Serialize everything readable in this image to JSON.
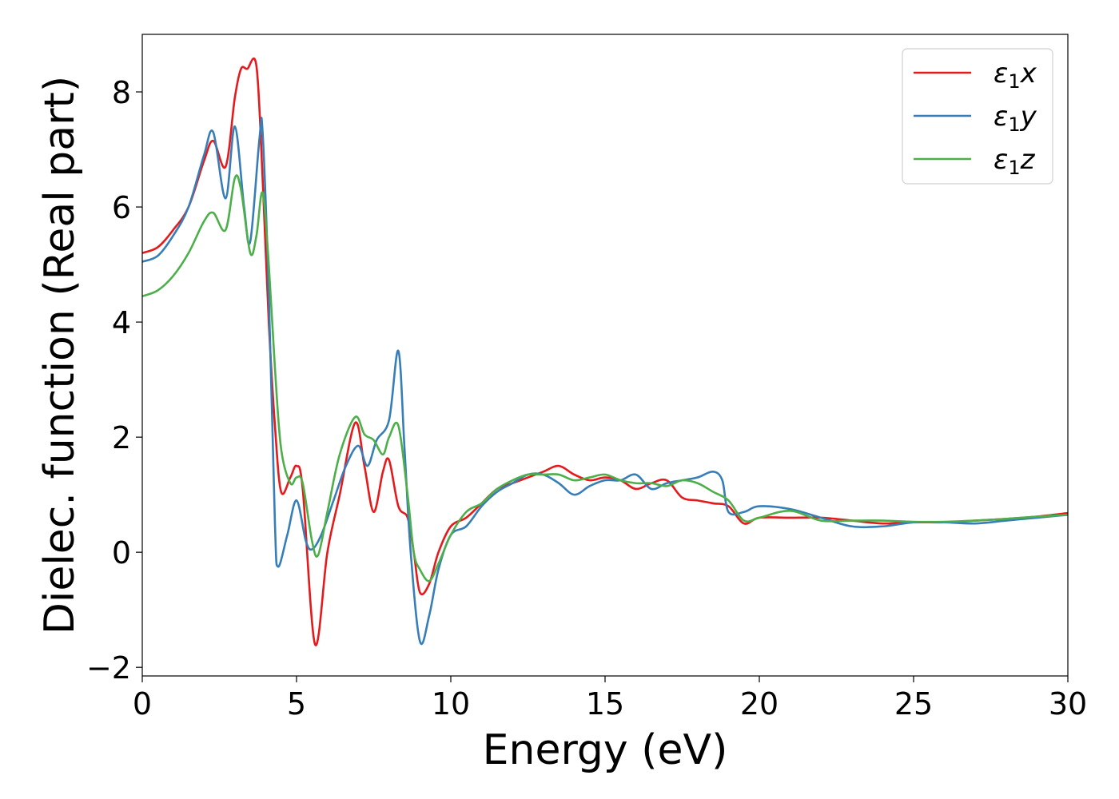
{
  "chart_data": {
    "type": "line",
    "title": "",
    "xlabel": "Energy (eV)",
    "ylabel": "Dielec. function (Real part)",
    "xlim": [
      0,
      30
    ],
    "ylim": [
      -2.15,
      9.0
    ],
    "xticks": [
      0,
      5,
      10,
      15,
      20,
      25,
      30
    ],
    "xtick_labels": [
      "0",
      "5",
      "10",
      "15",
      "20",
      "25",
      "30"
    ],
    "yticks": [
      -2,
      0,
      2,
      4,
      6,
      8
    ],
    "ytick_labels": [
      "−2",
      "0",
      "2",
      "4",
      "6",
      "8"
    ],
    "grid": false,
    "legend": "top-right",
    "series": [
      {
        "name": "ε₁x",
        "legend_base": "ε",
        "legend_sub": "1",
        "legend_var": "x",
        "color": "#e41a1c",
        "x": [
          0,
          0.5,
          1.0,
          1.5,
          2.0,
          2.3,
          2.7,
          3.0,
          3.2,
          3.4,
          3.7,
          3.9,
          4.1,
          4.3,
          4.5,
          4.8,
          5.0,
          5.2,
          5.6,
          6.0,
          6.4,
          6.9,
          7.2,
          7.5,
          7.8,
          8.0,
          8.3,
          8.6,
          8.8,
          9.0,
          9.3,
          9.6,
          10.0,
          10.5,
          11.0,
          11.5,
          12.0,
          12.5,
          13.0,
          13.5,
          14.0,
          14.5,
          15.0,
          15.5,
          16.0,
          16.5,
          17.0,
          17.5,
          18.0,
          18.5,
          19.0,
          19.5,
          20.0,
          21.0,
          22.0,
          23.0,
          24.0,
          25.0,
          26.0,
          27.0,
          28.0,
          29.0,
          30.0
        ],
        "y": [
          5.2,
          5.3,
          5.6,
          6.0,
          6.8,
          7.15,
          6.7,
          7.9,
          8.4,
          8.4,
          8.45,
          6.5,
          4.0,
          2.2,
          1.05,
          1.3,
          1.5,
          1.1,
          -1.6,
          0.0,
          1.0,
          2.25,
          1.5,
          0.7,
          1.4,
          1.6,
          0.8,
          0.6,
          0.0,
          -0.7,
          -0.55,
          0.0,
          0.45,
          0.6,
          0.85,
          1.1,
          1.2,
          1.3,
          1.4,
          1.5,
          1.35,
          1.25,
          1.3,
          1.25,
          1.1,
          1.2,
          1.25,
          0.95,
          0.9,
          0.85,
          0.8,
          0.5,
          0.6,
          0.6,
          0.6,
          0.55,
          0.5,
          0.52,
          0.52,
          0.55,
          0.58,
          0.62,
          0.68
        ]
      },
      {
        "name": "ε₁y",
        "legend_base": "ε",
        "legend_sub": "1",
        "legend_var": "y",
        "color": "#377eb8",
        "x": [
          0,
          0.5,
          1.0,
          1.5,
          2.0,
          2.3,
          2.7,
          3.0,
          3.3,
          3.5,
          3.8,
          3.9,
          4.1,
          4.3,
          4.4,
          4.7,
          5.0,
          5.3,
          5.5,
          5.8,
          6.2,
          6.6,
          7.0,
          7.3,
          7.6,
          8.0,
          8.3,
          8.5,
          8.7,
          9.0,
          9.3,
          9.6,
          10.0,
          10.5,
          11.0,
          11.5,
          12.0,
          12.5,
          13.0,
          13.5,
          14.0,
          14.5,
          15.0,
          15.5,
          16.0,
          16.5,
          17.0,
          17.5,
          18.0,
          18.5,
          18.8,
          19.0,
          19.5,
          20.0,
          21.0,
          22.0,
          23.0,
          24.0,
          25.0,
          26.0,
          27.0,
          28.0,
          29.0,
          30.0
        ],
        "y": [
          5.05,
          5.15,
          5.5,
          6.0,
          6.9,
          7.3,
          6.15,
          7.4,
          6.0,
          5.4,
          7.2,
          7.3,
          4.5,
          0.5,
          -0.25,
          0.3,
          0.9,
          0.2,
          0.05,
          0.3,
          0.9,
          1.5,
          1.85,
          1.5,
          1.95,
          2.3,
          3.5,
          1.8,
          0.0,
          -1.55,
          -1.1,
          -0.3,
          0.3,
          0.45,
          0.8,
          1.05,
          1.2,
          1.35,
          1.35,
          1.2,
          1.0,
          1.15,
          1.25,
          1.25,
          1.35,
          1.1,
          1.2,
          1.25,
          1.3,
          1.4,
          1.25,
          0.7,
          0.7,
          0.8,
          0.75,
          0.6,
          0.45,
          0.45,
          0.52,
          0.52,
          0.5,
          0.55,
          0.6,
          0.65
        ]
      },
      {
        "name": "ε₁z",
        "legend_base": "ε",
        "legend_sub": "1",
        "legend_var": "z",
        "color": "#4daf4a",
        "x": [
          0,
          0.5,
          1.0,
          1.5,
          2.0,
          2.3,
          2.7,
          3.0,
          3.2,
          3.5,
          3.7,
          3.9,
          4.1,
          4.3,
          4.5,
          4.8,
          5.0,
          5.2,
          5.5,
          5.7,
          6.0,
          6.4,
          6.9,
          7.2,
          7.5,
          7.8,
          8.0,
          8.3,
          8.6,
          8.8,
          9.0,
          9.3,
          9.6,
          10.0,
          10.5,
          11.0,
          11.5,
          12.0,
          12.5,
          13.0,
          13.5,
          14.0,
          14.5,
          15.0,
          15.5,
          16.0,
          16.5,
          17.0,
          17.5,
          18.0,
          18.5,
          19.0,
          19.5,
          20.0,
          21.0,
          22.0,
          23.0,
          24.0,
          25.0,
          26.0,
          27.0,
          28.0,
          29.0,
          30.0
        ],
        "y": [
          4.45,
          4.55,
          4.8,
          5.2,
          5.75,
          5.9,
          5.6,
          6.5,
          6.3,
          5.2,
          5.5,
          6.25,
          5.0,
          3.2,
          1.8,
          1.2,
          1.3,
          1.2,
          0.2,
          -0.05,
          0.7,
          1.7,
          2.35,
          2.05,
          1.95,
          1.7,
          2.0,
          2.2,
          1.0,
          0.0,
          -0.3,
          -0.5,
          -0.2,
          0.3,
          0.7,
          0.85,
          1.1,
          1.25,
          1.35,
          1.35,
          1.35,
          1.25,
          1.3,
          1.35,
          1.25,
          1.2,
          1.2,
          1.15,
          1.25,
          1.2,
          1.05,
          0.9,
          0.55,
          0.6,
          0.72,
          0.55,
          0.55,
          0.55,
          0.53,
          0.53,
          0.55,
          0.58,
          0.62,
          0.65
        ]
      }
    ]
  }
}
